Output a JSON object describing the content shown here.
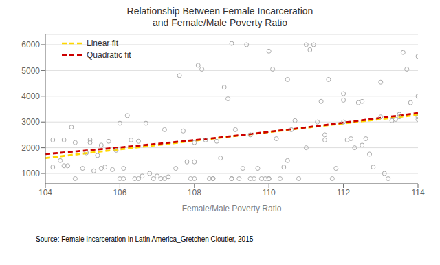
{
  "chart_data": {
    "type": "scatter",
    "title": "Relationship Between Female Incarceration\nand Female/Male Poverty Ratio",
    "xlabel": "Female/Male Poverty Ratio",
    "source": "Source: Female Incarceration in Latin America_Gretchen Cloutier, 2015",
    "xlim": [
      104,
      114
    ],
    "ylim": [
      600,
      6400
    ],
    "xticks": [
      104,
      106,
      108,
      110,
      112,
      114
    ],
    "yticks": [
      1000,
      2000,
      3000,
      4000,
      5000,
      6000
    ],
    "grid": "y",
    "legend": "upper left",
    "series": [
      {
        "type": "scatter",
        "color": "#aaaaaa",
        "marker": "circle",
        "x": [
          104.2,
          104.4,
          104.5,
          104.6,
          104.7,
          104.8,
          105.0,
          105.1,
          105.2,
          105.3,
          105.4,
          105.5,
          105.6,
          105.7,
          105.8,
          105.9,
          106.0,
          106.0,
          106.1,
          106.2,
          106.3,
          106.4,
          106.5,
          106.6,
          106.7,
          106.8,
          106.9,
          107.0,
          107.1,
          107.2,
          107.3,
          107.5,
          107.6,
          107.7,
          107.8,
          107.9,
          108.0,
          108.0,
          108.1,
          108.2,
          108.3,
          108.4,
          108.5,
          108.6,
          108.7,
          108.8,
          108.9,
          109.0,
          109.0,
          109.1,
          109.2,
          109.3,
          109.4,
          109.5,
          109.6,
          109.7,
          109.8,
          109.9,
          110.0,
          110.0,
          110.1,
          110.2,
          110.3,
          110.4,
          110.5,
          110.6,
          110.7,
          110.8,
          111.0,
          111.1,
          111.2,
          111.3,
          111.4,
          111.5,
          111.6,
          111.7,
          111.8,
          112.0,
          112.0,
          112.1,
          112.2,
          112.3,
          112.4,
          112.5,
          112.6,
          112.7,
          112.8,
          113.0,
          113.1,
          113.2,
          113.3,
          113.4,
          113.5,
          113.6,
          113.7,
          113.8,
          114.0,
          114.0,
          114.0,
          104.2,
          104.5,
          104.8,
          105.2,
          105.5,
          106.1,
          106.5,
          107.2,
          108.0,
          108.5,
          109.0,
          109.5,
          110.0,
          110.5,
          111.0,
          111.5,
          112.0,
          112.5,
          113.0,
          113.5,
          114.0
        ],
        "values": [
          1250,
          1500,
          2300,
          1300,
          2800,
          2200,
          1200,
          1800,
          2300,
          1100,
          1700,
          2100,
          1250,
          2250,
          1150,
          1900,
          800,
          2950,
          1200,
          3250,
          2300,
          800,
          2250,
          900,
          2950,
          1000,
          800,
          900,
          800,
          800,
          870,
          1200,
          4800,
          2650,
          1450,
          800,
          2200,
          800,
          5200,
          5050,
          2300,
          800,
          800,
          2250,
          1600,
          4350,
          3900,
          800,
          6050,
          2700,
          800,
          1200,
          6000,
          2500,
          800,
          1200,
          800,
          800,
          800,
          5750,
          5050,
          2350,
          800,
          1250,
          4650,
          2700,
          3050,
          800,
          6000,
          5800,
          6000,
          3000,
          3800,
          2300,
          4650,
          800,
          1200,
          4100,
          3850,
          2300,
          2350,
          2000,
          3750,
          3800,
          2350,
          1750,
          1250,
          4550,
          1000,
          800,
          3050,
          3100,
          3200,
          5700,
          5050,
          3750,
          3200,
          3100,
          5550,
          2300,
          1300,
          800,
          2200,
          1200,
          800,
          800,
          2700,
          1450,
          800,
          800,
          800,
          800,
          1500,
          2000,
          2500,
          3000,
          2100,
          3200,
          3300,
          4000
        ]
      },
      {
        "name": "Linear fit",
        "type": "line",
        "color": "#FFD700",
        "line_style": "dashed",
        "x": [
          104,
          114
        ],
        "values": [
          1600,
          3280
        ]
      },
      {
        "name": "Quadratic fit",
        "type": "line",
        "color": "#CC0000",
        "line_style": "dashed",
        "x": [
          104,
          109,
          114
        ],
        "values": [
          1750,
          2450,
          3350
        ]
      }
    ]
  }
}
